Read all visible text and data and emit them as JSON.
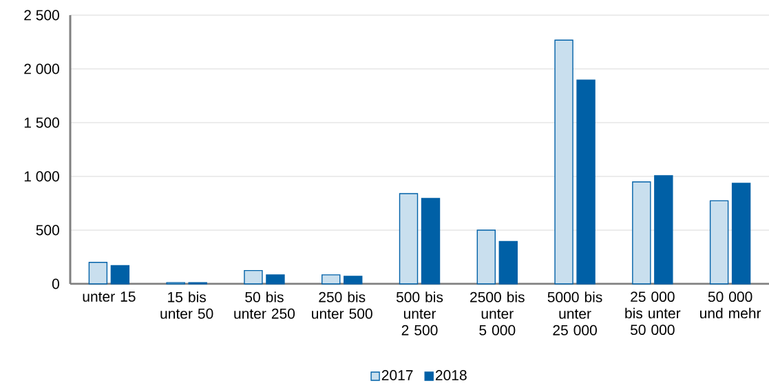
{
  "chart_data": {
    "type": "bar",
    "categories": [
      "unter 15",
      "15 bis unter 50",
      "50 bis unter 250",
      "250 bis unter 500",
      "500 bis unter 2 500",
      "2500 bis unter 5 000",
      "5000 bis unter 25 000",
      "25 000 bis unter 50 000",
      "50 000 und mehr"
    ],
    "series": [
      {
        "name": "2017",
        "color": "#c9dfee",
        "values": [
          200,
          12,
          124,
          84,
          840,
          500,
          2268,
          949,
          773
        ]
      },
      {
        "name": "2018",
        "color": "#0060a6",
        "values": [
          170,
          12,
          84,
          71,
          795,
          395,
          1896,
          1006,
          936
        ]
      }
    ],
    "ylim": [
      0,
      2500
    ],
    "yticks": [
      0,
      500,
      {
        "value": 1000,
        "label": "1 000"
      },
      {
        "value": 1500,
        "label": "1 500"
      },
      {
        "value": 2000,
        "label": "2 000"
      },
      {
        "value": 2500,
        "label": "2 500"
      }
    ],
    "grid": "y",
    "legend": "bottom"
  }
}
